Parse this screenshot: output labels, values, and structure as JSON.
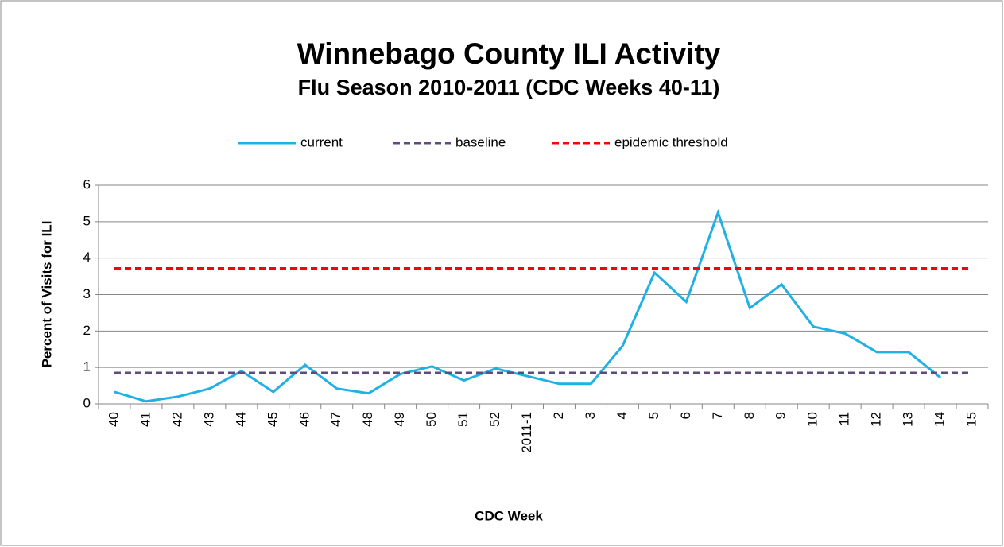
{
  "chart_data": {
    "type": "line",
    "title": "Winnebago County ILI Activity",
    "subtitle": "Flu Season 2010-2011 (CDC Weeks 40-11)",
    "x_label": "CDC Week",
    "y_label": "Percent of Visits for ILI",
    "categories": [
      "40",
      "41",
      "42",
      "43",
      "44",
      "45",
      "46",
      "47",
      "48",
      "49",
      "50",
      "51",
      "52",
      "2011-1",
      "2",
      "3",
      "4",
      "5",
      "6",
      "7",
      "8",
      "9",
      "10",
      "11",
      "12",
      "13",
      "14",
      "15"
    ],
    "series": [
      {
        "name": "current",
        "color": "#1fb0e4",
        "dashed": false,
        "values": [
          0.33,
          0.07,
          0.2,
          0.42,
          0.9,
          0.33,
          1.07,
          0.42,
          0.29,
          0.82,
          1.03,
          0.64,
          0.97,
          0.76,
          0.55,
          0.55,
          1.6,
          3.6,
          2.8,
          5.25,
          2.63,
          3.28,
          2.12,
          1.93,
          1.42,
          1.42,
          0.72,
          null
        ]
      },
      {
        "name": "baseline",
        "color": "#5f4b7c",
        "dashed": true,
        "values": [
          0.85,
          0.85,
          0.85,
          0.85,
          0.85,
          0.85,
          0.85,
          0.85,
          0.85,
          0.85,
          0.85,
          0.85,
          0.85,
          0.85,
          0.85,
          0.85,
          0.85,
          0.85,
          0.85,
          0.85,
          0.85,
          0.85,
          0.85,
          0.85,
          0.85,
          0.85,
          0.85,
          0.85
        ]
      },
      {
        "name": "epidemic threshold",
        "color": "#ff0000",
        "dashed": true,
        "values": [
          3.72,
          3.72,
          3.72,
          3.72,
          3.72,
          3.72,
          3.72,
          3.72,
          3.72,
          3.72,
          3.72,
          3.72,
          3.72,
          3.72,
          3.72,
          3.72,
          3.72,
          3.72,
          3.72,
          3.72,
          3.72,
          3.72,
          3.72,
          3.72,
          3.72,
          3.72,
          3.72,
          3.72
        ]
      }
    ],
    "ylim": [
      0,
      6
    ],
    "yticks": [
      0,
      1,
      2,
      3,
      4,
      5,
      6
    ],
    "grid": true,
    "legend": "top"
  }
}
